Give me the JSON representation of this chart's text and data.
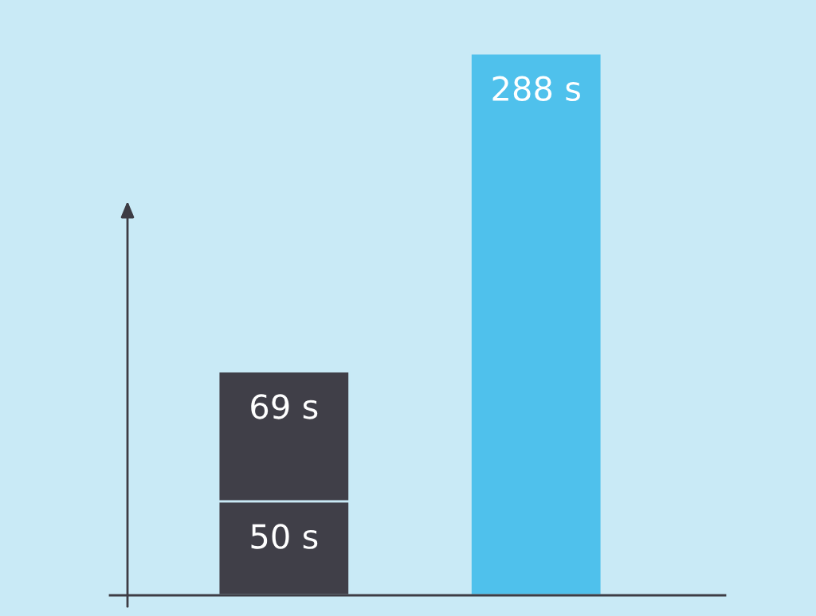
{
  "chart_data": {
    "type": "bar",
    "stacked": true,
    "categories": [
      null,
      null
    ],
    "series": [
      {
        "color": "#403f48",
        "values": [
          50,
          null
        ],
        "value_labels": [
          "50 s",
          null
        ]
      },
      {
        "color": "#403f48",
        "values": [
          69,
          null
        ],
        "value_labels": [
          "69 s",
          null
        ]
      },
      {
        "color": "#4fc1ec",
        "values": [
          null,
          288
        ],
        "value_labels": [
          null,
          "288 s"
        ]
      }
    ],
    "grid": false,
    "legend": false
  }
}
